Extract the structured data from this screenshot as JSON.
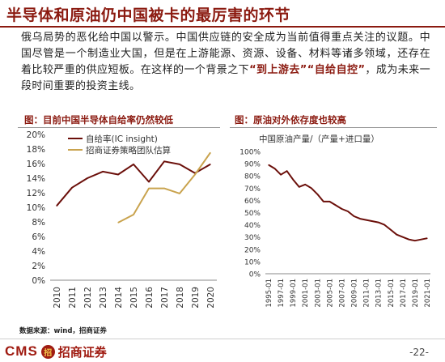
{
  "slide": {
    "title": "半导体和原油仍中国被卡的最厉害的环节",
    "intro_text": "俄乌局势的恶化给中国以警示。中国供应链的安全成为当前值得重点关注的议题。中国尽管是一个制造业大国，但是在上游能源、资源、设备、材料等诸多领域，还存在着比较严重的供应短板。在这样的一个背景之下",
    "intro_em1": "“到上游去”",
    "intro_em2": "“自给自控”",
    "intro_tail": "，成为未来一段时间重要的投资主线。",
    "source": "数据来源：wind，招商证券",
    "page_number": "-22-",
    "logo": {
      "cms": "CMS",
      "mark": "招",
      "name": "招商证券"
    }
  },
  "panels": {
    "left_title": "图：目前中国半导体自给率仍然较低",
    "right_title": "图：原油对外依存度也较高"
  },
  "chart_data": [
    {
      "type": "line",
      "title": "图：目前中国半导体自给率仍然较低",
      "x": [
        "2010",
        "2011",
        "2012",
        "2013",
        "2014",
        "2015",
        "2016",
        "2017",
        "2018",
        "2019",
        "2020"
      ],
      "ylim": [
        0,
        20
      ],
      "yticks": [
        "0%",
        "2%",
        "4%",
        "6%",
        "8%",
        "10%",
        "12%",
        "14%",
        "16%",
        "18%",
        "20%"
      ],
      "legend_position": "top-left",
      "series": [
        {
          "name": "自给率(IC insight)",
          "color": "#6b0f0a",
          "values": [
            10.2,
            12.7,
            14.0,
            14.9,
            14.5,
            15.9,
            13.5,
            16.3,
            15.9,
            14.7,
            15.9
          ]
        },
        {
          "name": "招商证券策略团队估算",
          "color": "#c9a34e",
          "values": [
            null,
            null,
            null,
            null,
            7.9,
            9.0,
            12.6,
            12.6,
            11.9,
            14.5,
            17.5
          ]
        }
      ]
    },
    {
      "type": "line",
      "title": "图：原油对外依存度也较高",
      "subtitle": "中国原油产量/（产量+进口量）",
      "x": [
        "1995-01",
        "1996-01",
        "1997-01",
        "1998-01",
        "1999-01",
        "2000-01",
        "2001-01",
        "2002-01",
        "2003-01",
        "2004-01",
        "2005-01",
        "2006-01",
        "2007-01",
        "2008-01",
        "2009-01",
        "2010-01",
        "2011-01",
        "2012-01",
        "2013-01",
        "2014-01",
        "2015-01",
        "2016-01",
        "2017-01",
        "2018-01",
        "2019-01",
        "2020-01",
        "2021-01"
      ],
      "xtick_labels": [
        "1995-01",
        "1997-01",
        "1999-01",
        "2001-01",
        "2003-01",
        "2005-01",
        "2007-01",
        "2009-01",
        "2011-01",
        "2013-01",
        "2015-01",
        "2017-01",
        "2019-01",
        "2021-01"
      ],
      "ylim": [
        0,
        100
      ],
      "yticks": [
        "0%",
        "10%",
        "20%",
        "30%",
        "40%",
        "50%",
        "60%",
        "70%",
        "80%",
        "90%",
        "100%"
      ],
      "series": [
        {
          "color": "#6b0f0a",
          "values": [
            89,
            86,
            81,
            84,
            77,
            71,
            73,
            70,
            65,
            59,
            59,
            56,
            53,
            51,
            47,
            45,
            44,
            43,
            42,
            40,
            36,
            32,
            30,
            28,
            27,
            28,
            29
          ]
        }
      ]
    }
  ]
}
